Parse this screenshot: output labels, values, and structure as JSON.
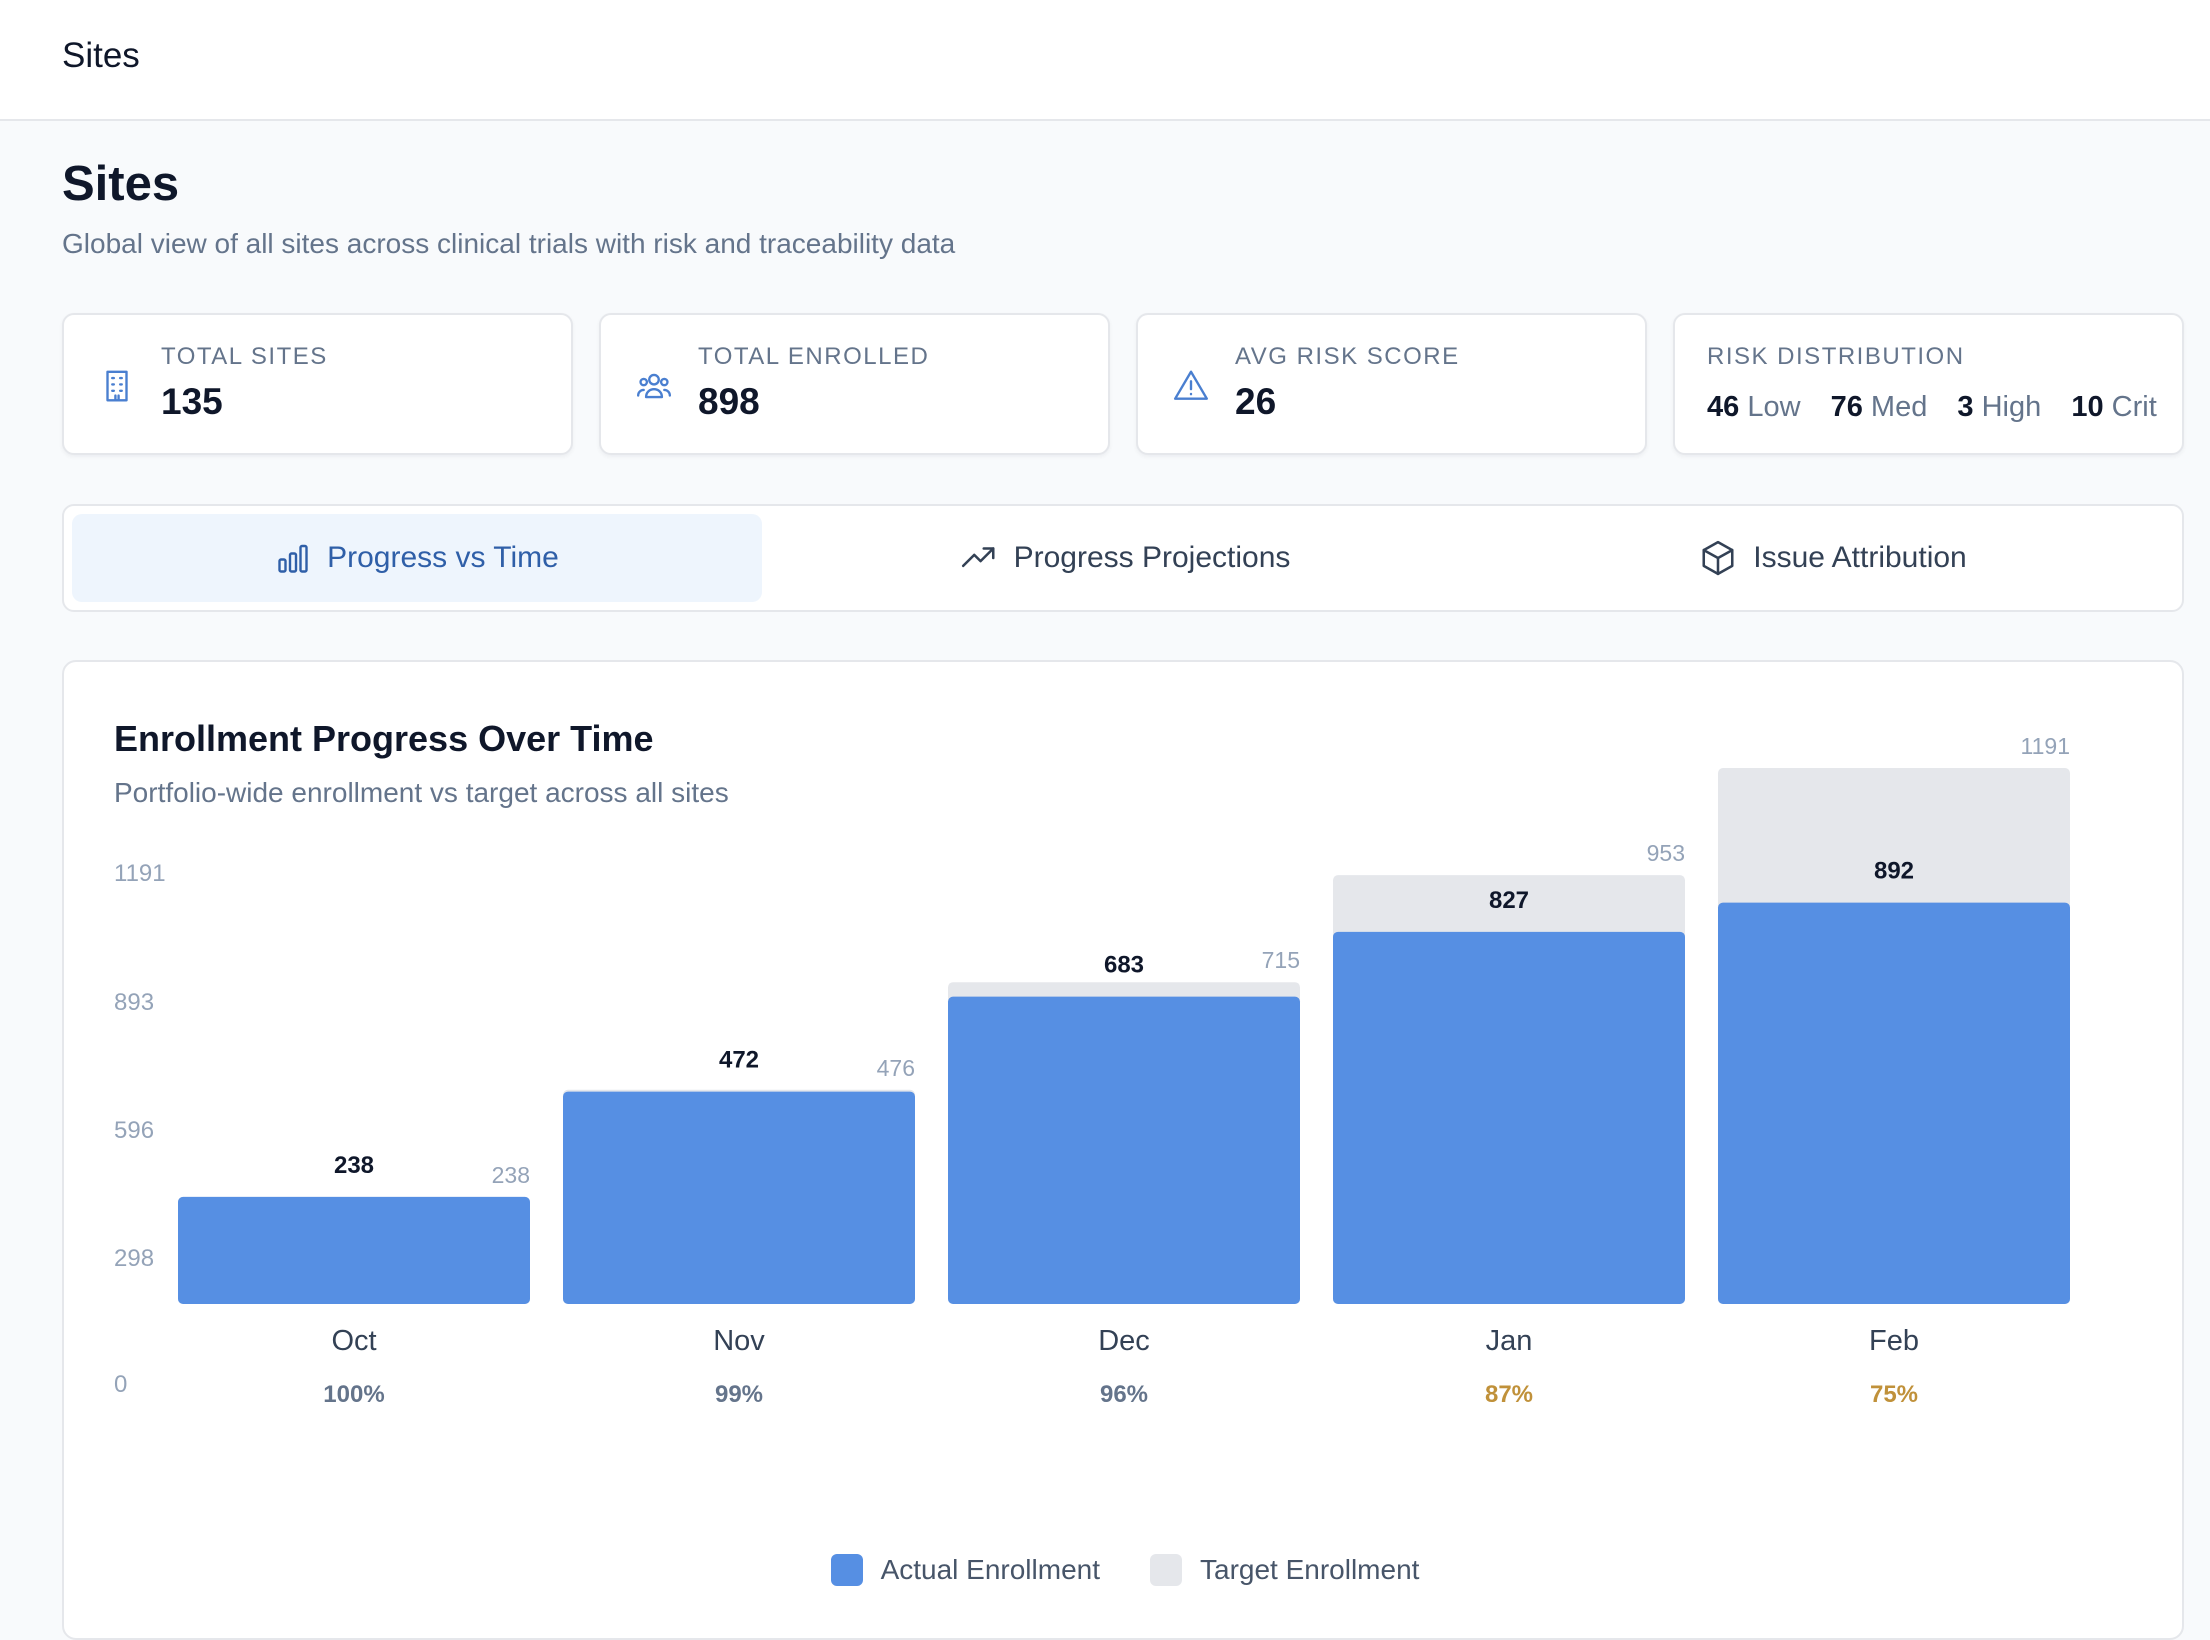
{
  "topbar": {
    "title": "Sites"
  },
  "header": {
    "title": "Sites",
    "subtitle": "Global view of all sites across clinical trials with risk and traceability data"
  },
  "stats": {
    "total_sites": {
      "label": "TOTAL SITES",
      "value": "135",
      "icon": "building-icon"
    },
    "total_enrolled": {
      "label": "TOTAL ENROLLED",
      "value": "898",
      "icon": "users-icon"
    },
    "avg_risk": {
      "label": "AVG RISK SCORE",
      "value": "26",
      "icon": "warning-icon"
    },
    "risk_distribution": {
      "label": "RISK DISTRIBUTION",
      "low": {
        "value": "46",
        "label": "Low"
      },
      "med": {
        "value": "76",
        "label": "Med"
      },
      "high": {
        "value": "3",
        "label": "High"
      },
      "crit": {
        "value": "10",
        "label": "Crit"
      }
    }
  },
  "tabs": [
    {
      "label": "Progress vs Time",
      "icon": "bar-chart-icon",
      "active": true
    },
    {
      "label": "Progress Projections",
      "icon": "trending-up-icon",
      "active": false
    },
    {
      "label": "Issue Attribution",
      "icon": "cube-icon",
      "active": false
    }
  ],
  "chart": {
    "title": "Enrollment Progress Over Time",
    "subtitle": "Portfolio-wide enrollment vs target across all sites"
  },
  "colors": {
    "actual": "#568fe3",
    "target": "#e5e7eb",
    "pct_ok": "#64748b",
    "pct_warn": "#c0913a"
  },
  "chart_data": {
    "type": "bar",
    "categories": [
      "Oct",
      "Nov",
      "Dec",
      "Jan",
      "Feb"
    ],
    "series": [
      {
        "name": "Actual Enrollment",
        "values": [
          238,
          472,
          683,
          827,
          892
        ]
      },
      {
        "name": "Target Enrollment",
        "values": [
          238,
          476,
          715,
          953,
          1191
        ]
      }
    ],
    "percent_labels": [
      "100%",
      "99%",
      "96%",
      "87%",
      "75%"
    ],
    "percent_warn": [
      false,
      false,
      false,
      true,
      true
    ],
    "y_ticks": [
      "1191",
      "893",
      "596",
      "298",
      "0"
    ],
    "ylim": [
      0,
      1191
    ],
    "legend": "bottom-center"
  }
}
